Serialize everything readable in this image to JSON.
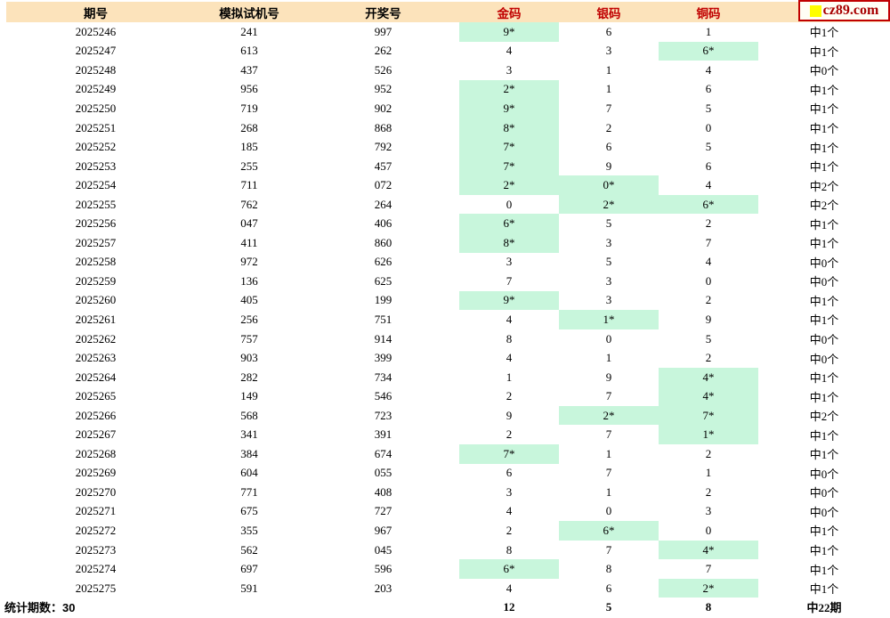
{
  "logo": {
    "text": "cz89.com"
  },
  "colors": {
    "header_bg": "#FCE3BB",
    "highlight_green": "#C8F6DC",
    "header_accent_red": "#C00000",
    "logo_red": "#A80000",
    "logo_square_yellow": "#FFFF00"
  },
  "table": {
    "headers": [
      "期号",
      "模拟试机号",
      "开奖号",
      "金码",
      "银码",
      "铜码",
      ""
    ],
    "rows": [
      {
        "period": "2025246",
        "sim": "241",
        "draw": "997",
        "gold": "9*",
        "gold_hl": true,
        "silver": "6",
        "silver_hl": false,
        "bronze": "1",
        "bronze_hl": false,
        "result": "中1个"
      },
      {
        "period": "2025247",
        "sim": "613",
        "draw": "262",
        "gold": "4",
        "gold_hl": false,
        "silver": "3",
        "silver_hl": false,
        "bronze": "6*",
        "bronze_hl": true,
        "result": "中1个"
      },
      {
        "period": "2025248",
        "sim": "437",
        "draw": "526",
        "gold": "3",
        "gold_hl": false,
        "silver": "1",
        "silver_hl": false,
        "bronze": "4",
        "bronze_hl": false,
        "result": "中0个"
      },
      {
        "period": "2025249",
        "sim": "956",
        "draw": "952",
        "gold": "2*",
        "gold_hl": true,
        "silver": "1",
        "silver_hl": false,
        "bronze": "6",
        "bronze_hl": false,
        "result": "中1个"
      },
      {
        "period": "2025250",
        "sim": "719",
        "draw": "902",
        "gold": "9*",
        "gold_hl": true,
        "silver": "7",
        "silver_hl": false,
        "bronze": "5",
        "bronze_hl": false,
        "result": "中1个"
      },
      {
        "period": "2025251",
        "sim": "268",
        "draw": "868",
        "gold": "8*",
        "gold_hl": true,
        "silver": "2",
        "silver_hl": false,
        "bronze": "0",
        "bronze_hl": false,
        "result": "中1个"
      },
      {
        "period": "2025252",
        "sim": "185",
        "draw": "792",
        "gold": "7*",
        "gold_hl": true,
        "silver": "6",
        "silver_hl": false,
        "bronze": "5",
        "bronze_hl": false,
        "result": "中1个"
      },
      {
        "period": "2025253",
        "sim": "255",
        "draw": "457",
        "gold": "7*",
        "gold_hl": true,
        "silver": "9",
        "silver_hl": false,
        "bronze": "6",
        "bronze_hl": false,
        "result": "中1个"
      },
      {
        "period": "2025254",
        "sim": "711",
        "draw": "072",
        "gold": "2*",
        "gold_hl": true,
        "silver": "0*",
        "silver_hl": true,
        "bronze": "4",
        "bronze_hl": false,
        "result": "中2个"
      },
      {
        "period": "2025255",
        "sim": "762",
        "draw": "264",
        "gold": "0",
        "gold_hl": false,
        "silver": "2*",
        "silver_hl": true,
        "bronze": "6*",
        "bronze_hl": true,
        "result": "中2个"
      },
      {
        "period": "2025256",
        "sim": "047",
        "draw": "406",
        "gold": "6*",
        "gold_hl": true,
        "silver": "5",
        "silver_hl": false,
        "bronze": "2",
        "bronze_hl": false,
        "result": "中1个"
      },
      {
        "period": "2025257",
        "sim": "411",
        "draw": "860",
        "gold": "8*",
        "gold_hl": true,
        "silver": "3",
        "silver_hl": false,
        "bronze": "7",
        "bronze_hl": false,
        "result": "中1个"
      },
      {
        "period": "2025258",
        "sim": "972",
        "draw": "626",
        "gold": "3",
        "gold_hl": false,
        "silver": "5",
        "silver_hl": false,
        "bronze": "4",
        "bronze_hl": false,
        "result": "中0个"
      },
      {
        "period": "2025259",
        "sim": "136",
        "draw": "625",
        "gold": "7",
        "gold_hl": false,
        "silver": "3",
        "silver_hl": false,
        "bronze": "0",
        "bronze_hl": false,
        "result": "中0个"
      },
      {
        "period": "2025260",
        "sim": "405",
        "draw": "199",
        "gold": "9*",
        "gold_hl": true,
        "silver": "3",
        "silver_hl": false,
        "bronze": "2",
        "bronze_hl": false,
        "result": "中1个"
      },
      {
        "period": "2025261",
        "sim": "256",
        "draw": "751",
        "gold": "4",
        "gold_hl": false,
        "silver": "1*",
        "silver_hl": true,
        "bronze": "9",
        "bronze_hl": false,
        "result": "中1个"
      },
      {
        "period": "2025262",
        "sim": "757",
        "draw": "914",
        "gold": "8",
        "gold_hl": false,
        "silver": "0",
        "silver_hl": false,
        "bronze": "5",
        "bronze_hl": false,
        "result": "中0个"
      },
      {
        "period": "2025263",
        "sim": "903",
        "draw": "399",
        "gold": "4",
        "gold_hl": false,
        "silver": "1",
        "silver_hl": false,
        "bronze": "2",
        "bronze_hl": false,
        "result": "中0个"
      },
      {
        "period": "2025264",
        "sim": "282",
        "draw": "734",
        "gold": "1",
        "gold_hl": false,
        "silver": "9",
        "silver_hl": false,
        "bronze": "4*",
        "bronze_hl": true,
        "result": "中1个"
      },
      {
        "period": "2025265",
        "sim": "149",
        "draw": "546",
        "gold": "2",
        "gold_hl": false,
        "silver": "7",
        "silver_hl": false,
        "bronze": "4*",
        "bronze_hl": true,
        "result": "中1个"
      },
      {
        "period": "2025266",
        "sim": "568",
        "draw": "723",
        "gold": "9",
        "gold_hl": false,
        "silver": "2*",
        "silver_hl": true,
        "bronze": "7*",
        "bronze_hl": true,
        "result": "中2个"
      },
      {
        "period": "2025267",
        "sim": "341",
        "draw": "391",
        "gold": "2",
        "gold_hl": false,
        "silver": "7",
        "silver_hl": false,
        "bronze": "1*",
        "bronze_hl": true,
        "result": "中1个"
      },
      {
        "period": "2025268",
        "sim": "384",
        "draw": "674",
        "gold": "7*",
        "gold_hl": true,
        "silver": "1",
        "silver_hl": false,
        "bronze": "2",
        "bronze_hl": false,
        "result": "中1个"
      },
      {
        "period": "2025269",
        "sim": "604",
        "draw": "055",
        "gold": "6",
        "gold_hl": false,
        "silver": "7",
        "silver_hl": false,
        "bronze": "1",
        "bronze_hl": false,
        "result": "中0个"
      },
      {
        "period": "2025270",
        "sim": "771",
        "draw": "408",
        "gold": "3",
        "gold_hl": false,
        "silver": "1",
        "silver_hl": false,
        "bronze": "2",
        "bronze_hl": false,
        "result": "中0个"
      },
      {
        "period": "2025271",
        "sim": "675",
        "draw": "727",
        "gold": "4",
        "gold_hl": false,
        "silver": "0",
        "silver_hl": false,
        "bronze": "3",
        "bronze_hl": false,
        "result": "中0个"
      },
      {
        "period": "2025272",
        "sim": "355",
        "draw": "967",
        "gold": "2",
        "gold_hl": false,
        "silver": "6*",
        "silver_hl": true,
        "bronze": "0",
        "bronze_hl": false,
        "result": "中1个"
      },
      {
        "period": "2025273",
        "sim": "562",
        "draw": "045",
        "gold": "8",
        "gold_hl": false,
        "silver": "7",
        "silver_hl": false,
        "bronze": "4*",
        "bronze_hl": true,
        "result": "中1个"
      },
      {
        "period": "2025274",
        "sim": "697",
        "draw": "596",
        "gold": "6*",
        "gold_hl": true,
        "silver": "8",
        "silver_hl": false,
        "bronze": "7",
        "bronze_hl": false,
        "result": "中1个"
      },
      {
        "period": "2025275",
        "sim": "591",
        "draw": "203",
        "gold": "4",
        "gold_hl": false,
        "silver": "6",
        "silver_hl": false,
        "bronze": "2*",
        "bronze_hl": true,
        "result": "中1个"
      }
    ],
    "footer": {
      "stat_label": "统计期数：30",
      "gold_total": "12",
      "silver_total": "5",
      "bronze_total": "8",
      "result_total": "中22期"
    }
  }
}
